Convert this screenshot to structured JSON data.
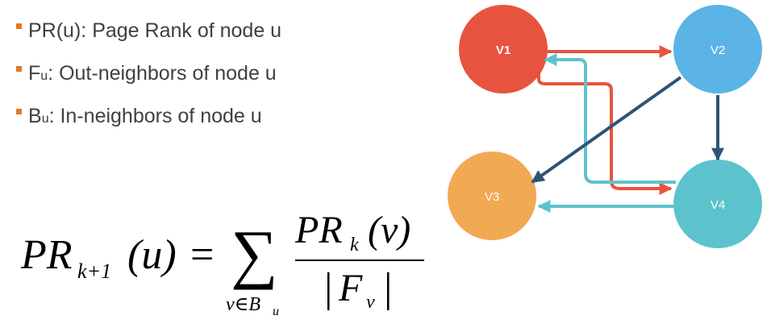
{
  "bullets": [
    {
      "symbol": "PR(u)",
      "text": ": Page Rank of node u"
    },
    {
      "symbol": "F",
      "sub": "u",
      "text": ": Out-neighbors of node u"
    },
    {
      "symbol": "B",
      "sub": "u",
      "text": ": In-neighbors of node u"
    }
  ],
  "formula": {
    "lhs_pr": "PR",
    "lhs_sub": "k+1",
    "lhs_arg": "(u)",
    "equals": "=",
    "sum": "∑",
    "sum_under": "v∈B",
    "sum_under_sub": "u",
    "num_pr": "PR",
    "num_sub": "k",
    "num_arg": "(v)",
    "den_bar_l": "|",
    "den_F": "F",
    "den_sub": "v",
    "den_bar_r": "|"
  },
  "graph": {
    "nodes": [
      {
        "id": "v1",
        "label": "V1",
        "color": "#E8533F"
      },
      {
        "id": "v2",
        "label": "V2",
        "color": "#5BB4E5"
      },
      {
        "id": "v3",
        "label": "V3",
        "color": "#F2A953"
      },
      {
        "id": "v4",
        "label": "V4",
        "color": "#5CC3CC"
      }
    ],
    "edge_colors": {
      "red": "#E8533F",
      "teal": "#5CC3CC",
      "navy": "#2D5478"
    }
  }
}
